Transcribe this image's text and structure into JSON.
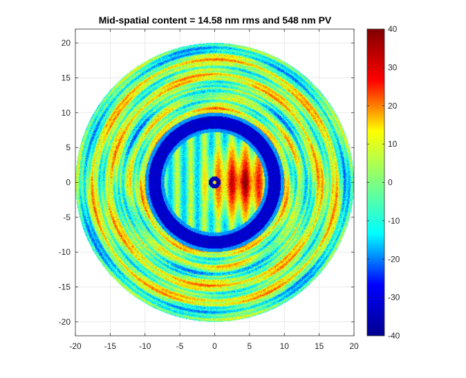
{
  "chart_data": {
    "type": "heatmap",
    "title": "Mid-spatial content = 14.58 nm rms and 548 nm PV",
    "xlabel": "",
    "ylabel": "",
    "xlim": [
      -20,
      20
    ],
    "ylim": [
      -22,
      22
    ],
    "x_ticks": [
      -20,
      -15,
      -10,
      -5,
      0,
      5,
      10,
      15,
      20
    ],
    "y_ticks": [
      -20,
      -15,
      -10,
      -5,
      0,
      5,
      10,
      15,
      20
    ],
    "grid": true,
    "colormap": "jet",
    "colorbar": {
      "range": [
        -40,
        40
      ],
      "ticks": [
        40,
        30,
        20,
        10,
        0,
        -10,
        -20,
        -30,
        -40
      ]
    },
    "aperture": {
      "center": [
        0,
        0
      ],
      "radius": 20
    },
    "features": [
      {
        "kind": "outer-field",
        "description_value": 10
      },
      {
        "kind": "ring",
        "center": [
          0,
          0
        ],
        "radius": 8.6,
        "value": -35
      },
      {
        "kind": "inner-bump",
        "center": [
          4,
          0
        ],
        "radius": 6.5,
        "value": 30
      },
      {
        "kind": "center-ring",
        "center": [
          0,
          0
        ],
        "radius": 0.5,
        "value": -35
      }
    ]
  },
  "colors": {
    "axis": "#262626",
    "grid": "#dfdfdf",
    "background": "#ffffff",
    "jet": [
      "#00008f",
      "#0000ff",
      "#00ffff",
      "#7fff7f",
      "#ffff00",
      "#ff0000",
      "#800000"
    ]
  }
}
